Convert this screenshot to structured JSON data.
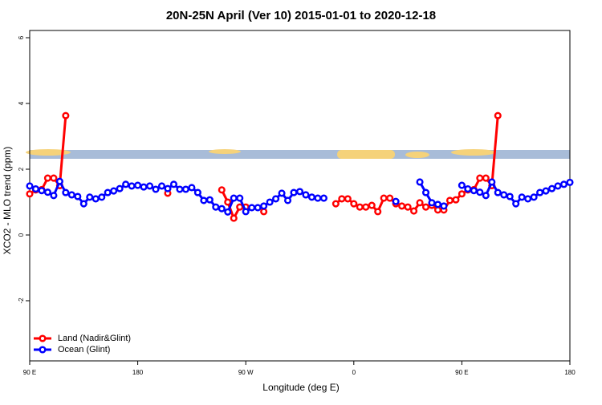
{
  "chart_data": {
    "type": "line",
    "title": "20N-25N April (Ver 10)   2015-01-01 to 2020-12-18",
    "xlabel": "Longitude (deg E)",
    "ylabel": "XCO2 - MLO trend (ppm)",
    "x": [
      90,
      95,
      100,
      105,
      110,
      115,
      120,
      125,
      130,
      135,
      140,
      145,
      150,
      155,
      160,
      165,
      170,
      175,
      180,
      185,
      190,
      195,
      200,
      205,
      210,
      215,
      220,
      225,
      230,
      235,
      240,
      245,
      250,
      255,
      260,
      265,
      270,
      275,
      280,
      285,
      290,
      295,
      300,
      305,
      310,
      315,
      320,
      325,
      330,
      335,
      340,
      345,
      350,
      355,
      360,
      365,
      370,
      375,
      380,
      385,
      390,
      395,
      400,
      405,
      410,
      415,
      420,
      425,
      430,
      435,
      440,
      445,
      450,
      455,
      460,
      465,
      470,
      475,
      480,
      485,
      490,
      495,
      500,
      505,
      510,
      515,
      520,
      525,
      530,
      535,
      540
    ],
    "xlim": [
      90,
      540
    ],
    "xticks": [
      {
        "value": 90,
        "label": "90 E"
      },
      180,
      {
        "value": 270,
        "label": "90 W"
      },
      {
        "value": 360,
        "label": "0"
      },
      {
        "value": 450,
        "label": "90 E"
      },
      {
        "value": 540,
        "label": "180"
      }
    ],
    "ylim": [
      -3.83,
      6.22
    ],
    "yticks": [
      -2,
      0,
      2,
      4,
      6
    ],
    "legend": "bottomleft",
    "series": [
      {
        "name": "Land (Nadir&Glint)",
        "color": "#ff0000",
        "values": [
          1.25,
          1.37,
          1.38,
          1.73,
          1.73,
          1.5,
          3.63,
          null,
          null,
          null,
          null,
          null,
          null,
          null,
          null,
          null,
          null,
          null,
          null,
          null,
          null,
          null,
          null,
          1.27,
          null,
          null,
          null,
          null,
          null,
          null,
          null,
          null,
          1.37,
          1.0,
          0.51,
          0.85,
          0.85,
          null,
          null,
          0.71,
          null,
          null,
          null,
          null,
          null,
          null,
          null,
          null,
          null,
          null,
          null,
          0.95,
          1.1,
          1.1,
          0.95,
          0.85,
          0.85,
          0.9,
          0.71,
          1.12,
          1.12,
          0.95,
          0.88,
          0.85,
          0.73,
          0.98,
          0.85,
          0.9,
          0.76,
          0.76,
          1.05,
          1.07,
          1.25,
          1.37,
          1.38,
          1.73,
          1.73,
          1.5,
          3.63,
          null,
          null,
          null,
          null,
          null,
          null,
          null,
          null,
          null,
          null,
          null,
          null
        ]
      },
      {
        "name": "Ocean (Glint)",
        "color": "#0000ff",
        "values": [
          1.49,
          1.4,
          1.35,
          1.3,
          1.2,
          1.63,
          1.29,
          1.22,
          1.17,
          0.95,
          1.15,
          1.1,
          1.15,
          1.29,
          1.34,
          1.41,
          1.54,
          1.49,
          1.51,
          1.46,
          1.49,
          1.39,
          1.49,
          1.41,
          1.54,
          1.39,
          1.39,
          1.44,
          1.29,
          1.05,
          1.07,
          0.85,
          0.8,
          0.7,
          1.12,
          1.12,
          0.71,
          0.83,
          0.83,
          0.88,
          1.0,
          1.1,
          1.27,
          1.05,
          1.29,
          1.32,
          1.22,
          1.15,
          1.12,
          1.12,
          null,
          null,
          null,
          null,
          null,
          null,
          null,
          null,
          null,
          null,
          null,
          1.02,
          null,
          null,
          null,
          1.61,
          1.29,
          0.98,
          0.93,
          0.88,
          null,
          null,
          1.51,
          1.4,
          1.35,
          1.3,
          1.2,
          1.61,
          1.29,
          1.22,
          1.17,
          0.95,
          1.15,
          1.1,
          1.15,
          1.29,
          1.34,
          1.41,
          1.49,
          1.54,
          1.6
        ]
      }
    ]
  }
}
